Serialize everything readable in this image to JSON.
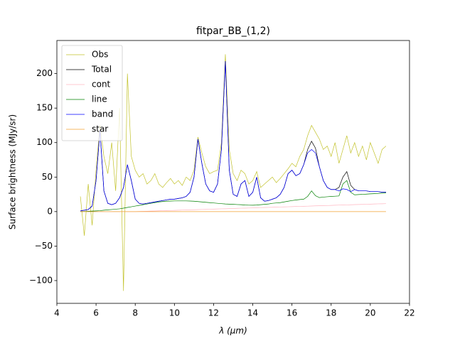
{
  "chart_data": {
    "type": "line",
    "title": "fitpar_BB_(1,2)",
    "xlabel": "λ (μm)",
    "ylabel": "Surface brightness (MJy/sr)",
    "xlim": [
      4,
      22
    ],
    "xticks": [
      4,
      6,
      8,
      10,
      12,
      14,
      16,
      18,
      20,
      22
    ],
    "ylim": [
      -133,
      248
    ],
    "yticks": [
      {
        "value": -100,
        "label": "−100"
      },
      {
        "value": -50,
        "label": "−50"
      },
      0,
      50,
      100,
      150,
      200
    ],
    "legend": "upper left",
    "x": [
      5.2,
      5.4,
      5.6,
      5.8,
      6.0,
      6.2,
      6.4,
      6.6,
      6.8,
      7.0,
      7.2,
      7.4,
      7.6,
      7.8,
      8.0,
      8.2,
      8.4,
      8.6,
      8.8,
      9.0,
      9.2,
      9.4,
      9.6,
      9.8,
      10.0,
      10.2,
      10.4,
      10.6,
      10.8,
      11.0,
      11.2,
      11.4,
      11.6,
      11.8,
      12.0,
      12.2,
      12.4,
      12.6,
      12.8,
      13.0,
      13.2,
      13.4,
      13.6,
      13.8,
      14.0,
      14.2,
      14.4,
      14.6,
      14.8,
      15.0,
      15.2,
      15.4,
      15.6,
      15.8,
      16.0,
      16.2,
      16.4,
      16.6,
      16.8,
      17.0,
      17.2,
      17.4,
      17.6,
      17.8,
      18.0,
      18.2,
      18.4,
      18.6,
      18.8,
      19.0,
      19.2,
      19.4,
      19.6,
      19.8,
      20.0,
      20.2,
      20.4,
      20.6,
      20.8
    ],
    "series": [
      {
        "name": "Obs",
        "color": "#c2c22a",
        "values": [
          22,
          -35,
          40,
          -20,
          60,
          125,
          80,
          55,
          100,
          30,
          150,
          -115,
          200,
          80,
          60,
          50,
          55,
          40,
          45,
          55,
          40,
          35,
          42,
          48,
          40,
          45,
          38,
          50,
          45,
          60,
          108,
          85,
          65,
          55,
          58,
          60,
          100,
          228,
          90,
          55,
          45,
          60,
          55,
          40,
          45,
          58,
          35,
          40,
          45,
          50,
          42,
          48,
          55,
          62,
          70,
          65,
          80,
          90,
          110,
          125,
          115,
          105,
          90,
          95,
          80,
          100,
          70,
          90,
          110,
          85,
          100,
          80,
          95,
          75,
          100,
          85,
          70,
          90,
          95
        ]
      },
      {
        "name": "Total",
        "color": "#000000",
        "values": [
          1,
          2,
          3,
          8,
          45,
          118,
          30,
          12,
          10,
          12,
          20,
          35,
          68,
          45,
          18,
          12,
          11,
          12,
          13,
          14,
          15,
          16,
          17,
          18,
          18,
          19,
          20,
          22,
          28,
          50,
          105,
          70,
          40,
          30,
          28,
          40,
          90,
          218,
          60,
          25,
          22,
          40,
          45,
          22,
          28,
          50,
          20,
          15,
          16,
          18,
          20,
          25,
          35,
          55,
          60,
          52,
          55,
          68,
          90,
          102,
          92,
          65,
          45,
          35,
          32,
          32,
          35,
          50,
          58,
          38,
          32,
          30,
          30,
          30,
          29,
          29,
          29,
          28,
          28
        ]
      },
      {
        "name": "cont",
        "color": "#ffb6c1",
        "values": [
          0,
          0,
          0,
          0,
          0,
          0,
          0,
          0,
          0,
          0,
          0,
          0,
          0,
          0,
          0,
          0.2,
          0.4,
          0.5,
          0.7,
          0.9,
          1.1,
          1.3,
          1.4,
          1.6,
          1.8,
          2,
          2.2,
          2.3,
          2.5,
          2.7,
          2.9,
          3.1,
          3.2,
          3.4,
          3.6,
          3.8,
          4,
          4.1,
          4.3,
          4.5,
          4.7,
          4.9,
          5,
          5.2,
          5.4,
          5.6,
          5.8,
          5.9,
          6.1,
          6.3,
          6.5,
          6.7,
          6.8,
          7,
          7.2,
          7.4,
          7.6,
          7.7,
          7.9,
          8.1,
          8.3,
          8.5,
          8.6,
          8.8,
          9,
          9.2,
          9.4,
          9.5,
          9.7,
          9.9,
          10.1,
          10.3,
          10.4,
          10.6,
          10.8,
          11,
          11.2,
          11.3,
          11.5
        ]
      },
      {
        "name": "line",
        "color": "#008000",
        "values": [
          0,
          0.2,
          0.5,
          0.7,
          1,
          1.3,
          2,
          2.5,
          3,
          3.5,
          4,
          5,
          6,
          7,
          8,
          9,
          10,
          11,
          12,
          13,
          14,
          14.5,
          15,
          15.3,
          15.5,
          15.5,
          15.5,
          15.5,
          15.3,
          15,
          14.5,
          14,
          13.5,
          13,
          12.5,
          12,
          11.5,
          11,
          10.8,
          10.5,
          10.2,
          10,
          9.5,
          9.3,
          9.2,
          9.5,
          10,
          10.5,
          11,
          12,
          12.5,
          13,
          14,
          15,
          16,
          16.8,
          17.5,
          18,
          22,
          30,
          23,
          20.3,
          21,
          21.5,
          22,
          22.3,
          22.7,
          40,
          45,
          28,
          24.3,
          24.7,
          25,
          25.3,
          25.7,
          26,
          26.3,
          26.7,
          27
        ]
      },
      {
        "name": "band",
        "color": "#0000ff",
        "values": [
          1,
          2,
          3,
          8,
          45,
          118,
          30,
          12,
          10,
          12,
          20,
          35,
          68,
          45,
          18,
          12,
          11,
          12,
          13,
          14,
          15,
          16,
          17,
          18,
          18,
          19,
          20,
          22,
          28,
          50,
          105,
          70,
          40,
          30,
          28,
          40,
          90,
          218,
          60,
          25,
          22,
          40,
          45,
          22,
          28,
          50,
          20,
          15,
          16,
          18,
          20,
          25,
          35,
          55,
          60,
          52,
          55,
          68,
          85,
          90,
          85,
          65,
          45,
          35,
          32,
          32,
          30,
          33,
          32,
          29,
          32,
          30,
          30,
          30,
          29,
          29,
          29,
          28,
          28
        ]
      },
      {
        "name": "star",
        "color": "#f0a030",
        "values": [
          0,
          0,
          0,
          0,
          0,
          0,
          0,
          0,
          0,
          0,
          0,
          0,
          0,
          0,
          0,
          0,
          0,
          0,
          0,
          0,
          0,
          0,
          0,
          0,
          0,
          0,
          0,
          0,
          0,
          0,
          0,
          0,
          0,
          0,
          0,
          0,
          0,
          0,
          0,
          0,
          0,
          0,
          0,
          0,
          0,
          0,
          0,
          0,
          0,
          0,
          0,
          0,
          0,
          0,
          0,
          0,
          0,
          0,
          0,
          0,
          0,
          0,
          0,
          0,
          0,
          0,
          0,
          0,
          0,
          0,
          0,
          0,
          0,
          0,
          0,
          0,
          0,
          0,
          0
        ]
      }
    ]
  }
}
